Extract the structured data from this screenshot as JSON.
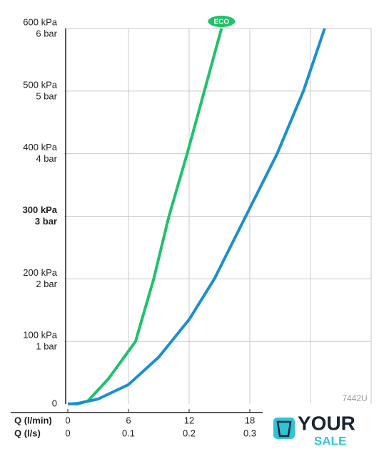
{
  "chart_data": {
    "type": "line",
    "xlim": [
      0,
      30
    ],
    "ylim": [
      0,
      600
    ],
    "x_label": "Q (l/min)",
    "xticks": [
      0,
      6,
      12,
      18
    ],
    "x2_label": "Q (l/s)",
    "x2ticks": [
      0,
      {
        "value": 6,
        "label": "0.1"
      },
      {
        "value": 12,
        "label": "0.2"
      },
      {
        "value": 18,
        "label": "0.3"
      }
    ],
    "xgrid": [
      0,
      6,
      12,
      18,
      24,
      30
    ],
    "yticks": [
      0,
      {
        "value": 100,
        "label": "100 kPa"
      },
      {
        "value": 200,
        "label": "200 kPa"
      },
      {
        "value": 300,
        "label": "300 kPa"
      },
      {
        "value": 400,
        "label": "400 kPa"
      },
      {
        "value": 500,
        "label": "500 kPa"
      },
      {
        "value": 600,
        "label": "600 kPa"
      }
    ],
    "ytick_bar_labels": [
      null,
      "1 bar",
      "2 bar",
      "3 bar",
      "4 bar",
      "5 bar",
      "6 bar"
    ],
    "emphasized_ytick": 300,
    "grid": true,
    "series": [
      {
        "name": "ECO",
        "color": "#1ec26a",
        "x": [
          0,
          1,
          2,
          4,
          6.7,
          8.5,
          10,
          11.8,
          13.5,
          15.2
        ],
        "values": [
          0,
          0,
          5,
          40,
          100,
          200,
          300,
          400,
          500,
          600
        ]
      },
      {
        "color": "#1a8fd0",
        "x": [
          0,
          1,
          3,
          6,
          9,
          12,
          14.5,
          17.6,
          20.7,
          23.3,
          25.4
        ],
        "values": [
          0,
          1,
          8,
          31,
          75,
          135,
          200,
          300,
          400,
          500,
          600
        ]
      }
    ],
    "watermark": "7442U",
    "logo": {
      "line1": "YOUR",
      "line2": "SALE"
    }
  }
}
